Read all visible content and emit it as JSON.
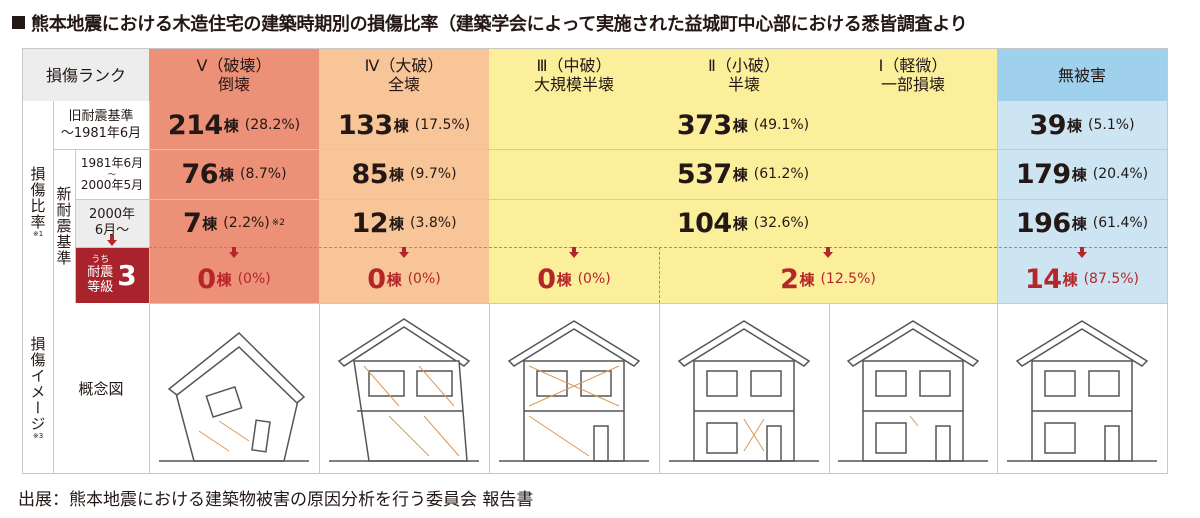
{
  "title": "熊本地震における木造住宅の建築時期別の損傷比率（建築学会によって実施された益城町中心部における悉皆調査より",
  "source": "出展：熊本地震における建築物被害の原因分析を行う委員会 報告書",
  "header": {
    "rank_label": "損傷ランク",
    "col_v": [
      "Ⅴ（破壊）",
      "倒壊"
    ],
    "col_iv": [
      "Ⅳ（大破）",
      "全壊"
    ],
    "col_iii": [
      "Ⅲ（中破）",
      "大規模半壊"
    ],
    "col_ii": [
      "Ⅱ（小破）",
      "半壊"
    ],
    "col_i": [
      "Ⅰ（軽微）",
      "一部損壊"
    ],
    "col_none": "無被害"
  },
  "side": {
    "ratio_label": "損傷比率",
    "ratio_note": "※1",
    "new_std": "新耐震基準",
    "image_label": "損傷イメージ",
    "image_note": "※3",
    "concept": "概念図"
  },
  "rows": {
    "old": {
      "label1": "旧耐震基準",
      "label2": "～1981年6月",
      "v": "214",
      "v_pct": "(28.2%)",
      "iv": "133",
      "iv_pct": "(17.5%)",
      "mid": "373",
      "mid_pct": "(49.1%)",
      "none": "39",
      "none_pct": "(5.1%)"
    },
    "new1": {
      "label1": "1981年6月",
      "label2": "～",
      "label3": "2000年5月",
      "v": "76",
      "v_pct": "(8.7%)",
      "iv": "85",
      "iv_pct": "(9.7%)",
      "mid": "537",
      "mid_pct": "(61.2%)",
      "none": "179",
      "none_pct": "(20.4%)"
    },
    "new2": {
      "label1": "2000年",
      "label2": "6月～",
      "v": "7",
      "v_pct": "(2.2%)",
      "v_note": "※2",
      "iv": "12",
      "iv_pct": "(3.8%)",
      "mid": "104",
      "mid_pct": "(32.6%)",
      "none": "196",
      "none_pct": "(61.4%)"
    },
    "grade3": {
      "uchi": "うち",
      "label1": "耐震",
      "label2": "等級",
      "grade": "3",
      "v": "0",
      "v_pct": "(0%)",
      "iv": "0",
      "iv_pct": "(0%)",
      "iii": "0",
      "iii_pct": "(0%)",
      "ii_i": "2",
      "ii_i_pct": "(12.5%)",
      "none": "14",
      "none_pct": "(87.5%)"
    }
  },
  "unit": "棟",
  "colors": {
    "v": "#ec9077",
    "iv": "#f7c598",
    "yellow": "#fbef9c",
    "blue": "#cde5f3",
    "red": "#a8232b"
  }
}
